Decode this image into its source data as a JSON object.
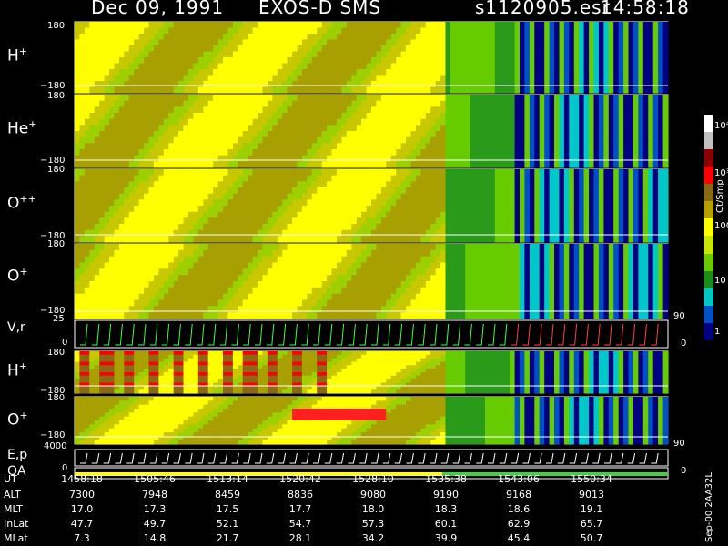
{
  "header": {
    "date": "Dec 09, 1991",
    "mission": "EXOS-D SMS",
    "file": "s1120905.esr",
    "time": "14:58:18"
  },
  "panels": [
    {
      "id": "h1",
      "label": "H",
      "sup": "+",
      "ymax": "180",
      "ymin": "−180"
    },
    {
      "id": "he1",
      "label": "He",
      "sup": "+",
      "ymax": "180",
      "ymin": "−180"
    },
    {
      "id": "opp",
      "label": "O",
      "sup": "++",
      "ymax": "180",
      "ymin": "−180"
    },
    {
      "id": "o1",
      "label": "O",
      "sup": "+",
      "ymax": "180",
      "ymin": "−180"
    },
    {
      "id": "vr",
      "label": "V,r",
      "sup": "",
      "ymax": "25",
      "ymin": "0",
      "right_top": "90",
      "right_bottom": "0"
    },
    {
      "id": "h2",
      "label": "H",
      "sup": "+",
      "ymax": "180",
      "ymin": "−180"
    },
    {
      "id": "o2",
      "label": "O",
      "sup": "+",
      "ymax": "180",
      "ymin": "−180"
    },
    {
      "id": "ep",
      "label": "E,p",
      "sup": "",
      "ymax": "4000",
      "ymin": "0",
      "right_top": "90",
      "right_bottom": "0"
    },
    {
      "id": "qa",
      "label": "QA",
      "sup": "",
      "ymax": "",
      "ymin": ""
    }
  ],
  "colorbar": {
    "unit": "Ct/Smp",
    "ticks": [
      "10⁴",
      "10³",
      "100",
      "10",
      "1"
    ],
    "colors": [
      "#ffffff",
      "#c0c0c0",
      "#8b0000",
      "#ff0000",
      "#8b6914",
      "#b8a000",
      "#ffff00",
      "#c8e600",
      "#66cc00",
      "#1a8c1a",
      "#00c8c8",
      "#0050c8",
      "#000080"
    ]
  },
  "footer": {
    "rows": [
      {
        "name": "UT",
        "values": [
          "1458:18",
          "1505:46",
          "1513:14",
          "1520:42",
          "1528:10",
          "1535:38",
          "1543:06",
          "1550:34"
        ]
      },
      {
        "name": "ALT",
        "values": [
          "7300",
          "7948",
          "8459",
          "8836",
          "9080",
          "9190",
          "9168",
          "9013"
        ]
      },
      {
        "name": "MLT",
        "values": [
          "17.0",
          "17.3",
          "17.5",
          "17.7",
          "18.0",
          "18.3",
          "18.6",
          "19.1"
        ]
      },
      {
        "name": "InLat",
        "values": [
          "47.7",
          "49.7",
          "52.1",
          "54.7",
          "57.3",
          "60.1",
          "62.9",
          "65.7"
        ]
      },
      {
        "name": "MLat",
        "values": [
          "7.3",
          "14.8",
          "21.7",
          "28.1",
          "34.2",
          "39.9",
          "45.4",
          "50.7"
        ]
      }
    ],
    "stamp": "Sep-00  2AA32L"
  },
  "chart_data": {
    "type": "heatmap",
    "title": "Dec 09, 1991   EXOS-D SMS",
    "x_ticks": [
      "1458:18",
      "1505:46",
      "1513:14",
      "1520:42",
      "1528:10",
      "1535:38",
      "1543:06",
      "1550:34"
    ],
    "y_range": [
      -180,
      180
    ],
    "colorbar_range": [
      "1",
      "10⁴"
    ],
    "colorbar_unit": "Ct/Smp",
    "series": [
      {
        "name": "H+"
      },
      {
        "name": "He+"
      },
      {
        "name": "O++"
      },
      {
        "name": "O+"
      },
      {
        "name": "V,r"
      },
      {
        "name": "H+"
      },
      {
        "name": "O+"
      },
      {
        "name": "E,p"
      },
      {
        "name": "QA"
      }
    ]
  }
}
